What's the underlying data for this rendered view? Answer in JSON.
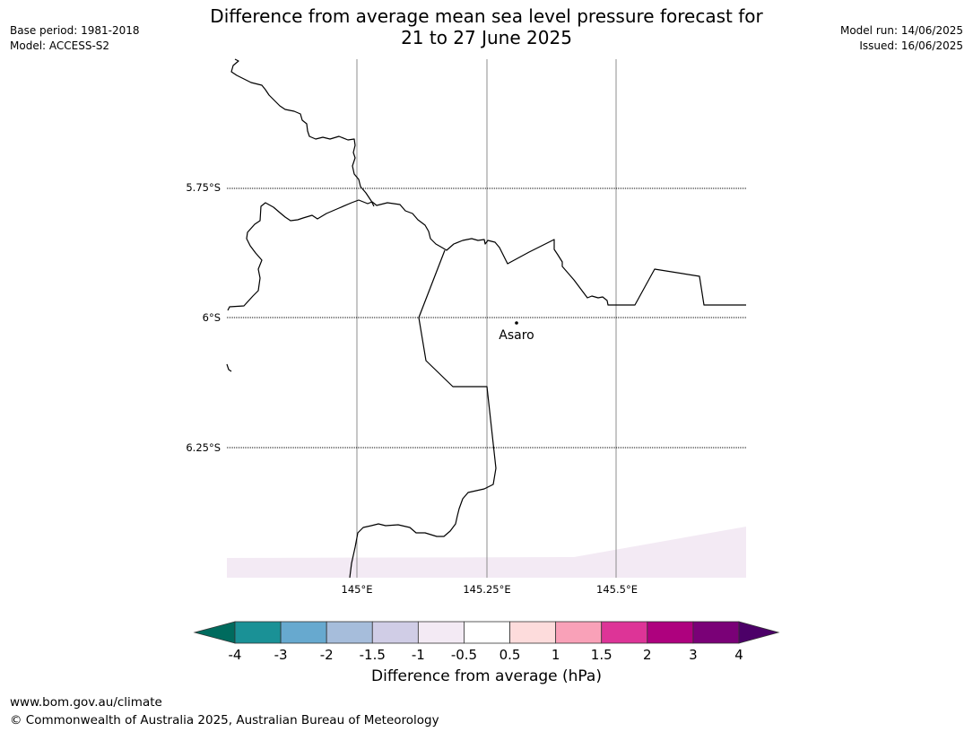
{
  "header": {
    "title_line1": "Difference from average mean sea level pressure forecast for",
    "title_line2": "21 to 27 June 2025",
    "base_period": "Base period: 1981-2018",
    "model": "Model: ACCESS-S2",
    "model_run": "Model run: 14/06/2025",
    "issued": "Issued: 16/06/2025"
  },
  "map": {
    "lat_labels": [
      "5.75°S",
      "6°S",
      "6.25°S"
    ],
    "lon_labels": [
      "145°E",
      "145.25°E",
      "145.5°E"
    ],
    "place_label": "Asaro",
    "land_outline_color": "#000000",
    "anomaly_fill_color": "#f3eaf4"
  },
  "colorbar": {
    "label": "Difference from average (hPa)",
    "ticks": [
      "-4",
      "-3",
      "-2",
      "-1.5",
      "-1",
      "-0.5",
      "0.5",
      "1",
      "1.5",
      "2",
      "3",
      "4"
    ],
    "low_extend_color": "#006b5e",
    "high_extend_color": "#4c0068",
    "colors": [
      "#1a9196",
      "#67a9cf",
      "#a6bddb",
      "#d0cde6",
      "#f3eaf4",
      "#ffffff",
      "#fddcdc",
      "#f9a1b8",
      "#dd3497",
      "#ae017e",
      "#7a0177"
    ]
  },
  "footer": {
    "url": "www.bom.gov.au/climate",
    "copyright": "© Commonwealth of Australia 2025, Australian Bureau of Meteorology"
  }
}
